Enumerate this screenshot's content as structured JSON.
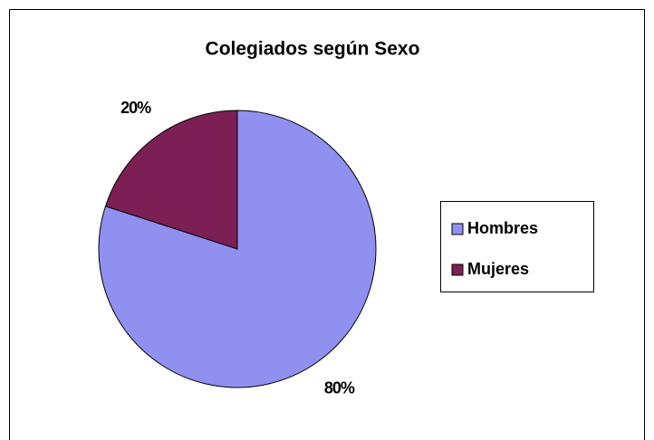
{
  "chart_data": {
    "type": "pie",
    "title": "Colegiados según Sexo",
    "categories": [
      "Hombres",
      "Mujeres"
    ],
    "values": [
      80,
      20
    ],
    "value_labels": [
      "80%",
      "20%"
    ],
    "colors": [
      "#9090f0",
      "#7c1f55"
    ],
    "legend": "right"
  }
}
